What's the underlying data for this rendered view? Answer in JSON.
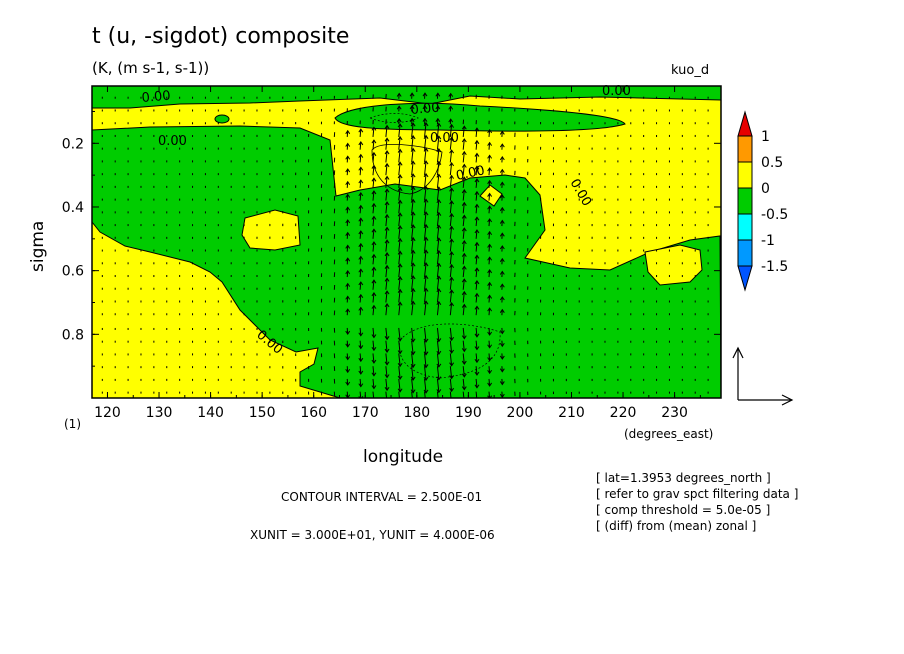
{
  "header": {
    "title": "t (u, -sigdot) composite",
    "units": "(K, (m s-1, s-1))",
    "tag": "kuo_d"
  },
  "chart_data": {
    "type": "heatmap",
    "title": "t (u, -sigdot) composite",
    "xlabel": "longitude",
    "xunits": "(degrees_east)",
    "ylabel": "sigma",
    "ylabel_unit": "(1)",
    "xlim": [
      117,
      239
    ],
    "ylim": [
      1.0,
      0.02
    ],
    "x_ticks": [
      120,
      130,
      140,
      150,
      160,
      170,
      180,
      190,
      200,
      210,
      220,
      230
    ],
    "y_ticks": [
      0.2,
      0.4,
      0.6,
      0.8
    ],
    "x_tick_labels": [
      "120",
      "130",
      "140",
      "150",
      "160",
      "170",
      "180",
      "190",
      "200",
      "210",
      "220",
      "230"
    ],
    "y_tick_labels": [
      "0.2",
      "0.4",
      "0.6",
      "0.8"
    ],
    "colorbar": {
      "labels": [
        "1",
        "0.5",
        "0",
        "-0.5",
        "-1",
        "-1.5"
      ],
      "levels": [
        1,
        0.5,
        0,
        -0.5,
        -1,
        -1.5
      ],
      "colors": [
        "#e60000",
        "#ff9900",
        "#ffff00",
        "#00cc00",
        "#00ffff",
        "#0099ff",
        "#0055ff"
      ]
    },
    "contour_labels": [
      "0.00",
      "0.00",
      "0.00",
      "0.00",
      "0.00",
      "0.00",
      "0.00",
      "0.00"
    ],
    "contour_interval_text": "CONTOUR INTERVAL = 2.500E-01",
    "vector_units_text": "XUNIT = 3.000E+01, YUNIT = 4.000E-06",
    "grid": false
  },
  "notes": [
    "[ lat=1.3953 degrees_north ]",
    "[ refer to grav spct filtering data ]",
    "[ comp threshold = 5.0e-05 ]",
    "[ (diff) from (mean) zonal ]"
  ]
}
